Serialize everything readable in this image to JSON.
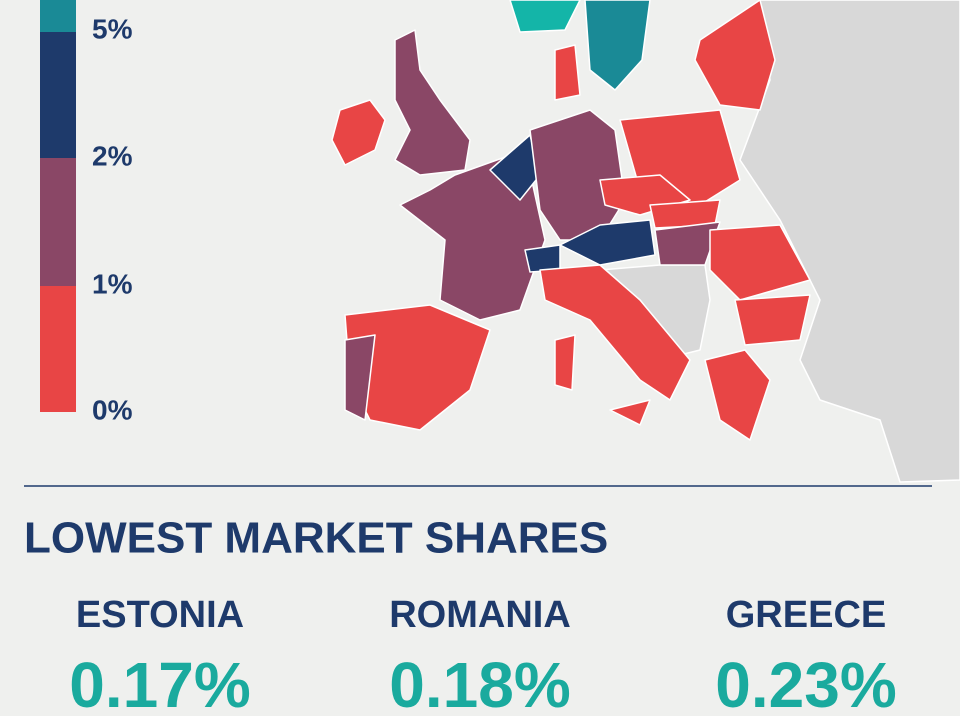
{
  "legend": {
    "labels": [
      "5%",
      "2%",
      "1%",
      "0%"
    ]
  },
  "section": {
    "title": "LOWEST MARKET SHARES",
    "items": [
      {
        "country": "ESTONIA",
        "share": "0.17%"
      },
      {
        "country": "ROMANIA",
        "share": "0.18%"
      },
      {
        "country": "GREECE",
        "share": "0.23%"
      }
    ]
  }
}
